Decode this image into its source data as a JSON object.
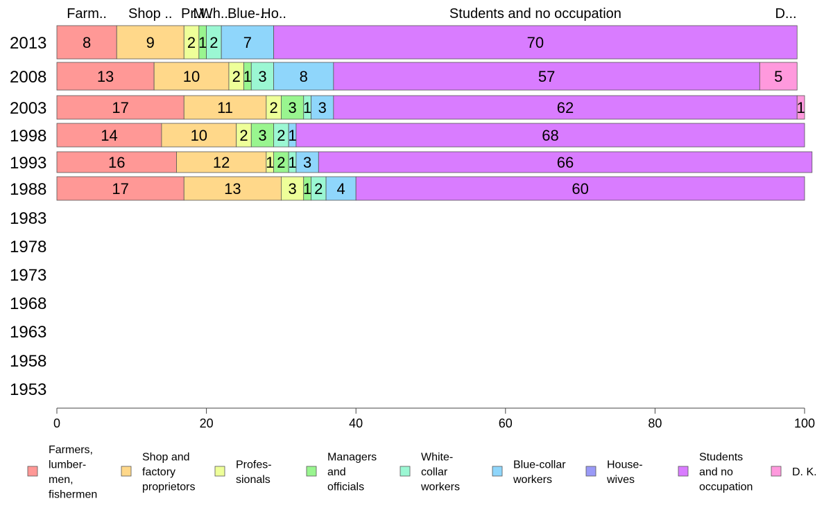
{
  "chart_data": {
    "type": "bar",
    "orientation": "horizontal",
    "stacked": true,
    "title": "",
    "xlabel": "",
    "ylabel": "",
    "xlim": [
      0,
      100
    ],
    "x_ticks": [
      "0",
      "20",
      "40",
      "60",
      "80",
      "100"
    ],
    "categories": [
      "2013",
      "2008",
      "2003",
      "1998",
      "1993",
      "1988",
      "1983",
      "1978",
      "1973",
      "1968",
      "1963",
      "1958",
      "1953"
    ],
    "top_labels": [
      "Farm..",
      "Shop ..",
      "Pr..",
      "M..",
      "Wh..",
      "Blue-..",
      "Ho..",
      "Students and no occupation",
      "D..."
    ],
    "legend_position": "bottom",
    "grid": false,
    "series": [
      {
        "name": "Farmers, lumbermen, fishermen",
        "legend_lines": [
          "Farmers,",
          "lumber-",
          "men,",
          "fishermen"
        ],
        "color": "#ff9896",
        "values": [
          8,
          13,
          17,
          14,
          16,
          17,
          null,
          null,
          null,
          null,
          null,
          null,
          null
        ]
      },
      {
        "name": "Shop and factory proprietors",
        "legend_lines": [
          "Shop and",
          "factory",
          "proprietors"
        ],
        "color": "#ffd88a",
        "values": [
          9,
          10,
          11,
          10,
          12,
          13,
          null,
          null,
          null,
          null,
          null,
          null,
          null
        ]
      },
      {
        "name": "Professionals",
        "legend_lines": [
          "Profes-",
          "sionals"
        ],
        "color": "#eeff99",
        "values": [
          2,
          2,
          2,
          2,
          1,
          3,
          null,
          null,
          null,
          null,
          null,
          null,
          null
        ]
      },
      {
        "name": "Managers and officials",
        "legend_lines": [
          "Managers",
          "and",
          "officials"
        ],
        "color": "#99f58f",
        "values": [
          1,
          1,
          3,
          3,
          2,
          1,
          null,
          null,
          null,
          null,
          null,
          null,
          null
        ]
      },
      {
        "name": "White-collar workers",
        "legend_lines": [
          "White-",
          "collar",
          "workers"
        ],
        "color": "#9bf7d3",
        "values": [
          2,
          3,
          1,
          2,
          1,
          2,
          null,
          null,
          null,
          null,
          null,
          null,
          null
        ]
      },
      {
        "name": "Blue-collar workers",
        "legend_lines": [
          "Blue-collar",
          "workers"
        ],
        "color": "#8fd6fb",
        "values": [
          7,
          8,
          3,
          1,
          3,
          4,
          null,
          null,
          null,
          null,
          null,
          null,
          null
        ]
      },
      {
        "name": "Housewives",
        "legend_lines": [
          "House-",
          "wives"
        ],
        "color": "#9a9af7",
        "values": [
          0,
          0,
          0,
          0,
          0,
          0,
          null,
          null,
          null,
          null,
          null,
          null,
          null
        ]
      },
      {
        "name": "Students and no occupation",
        "legend_lines": [
          "Students",
          "and no",
          "occupation"
        ],
        "color": "#d97cff",
        "values": [
          70,
          57,
          62,
          68,
          66,
          60,
          null,
          null,
          null,
          null,
          null,
          null,
          null
        ]
      },
      {
        "name": "D. K.",
        "legend_lines": [
          "D. K."
        ],
        "color": "#ff99dd",
        "values": [
          0,
          5,
          1,
          0,
          0,
          0,
          null,
          null,
          null,
          null,
          null,
          null,
          null
        ]
      }
    ],
    "segment_labels": [
      [
        "8",
        "9",
        "2",
        "1",
        "2",
        "7",
        "",
        "70",
        ""
      ],
      [
        "13",
        "10",
        "2",
        "1",
        "3",
        "8",
        "",
        "57",
        "5"
      ],
      [
        "17",
        "11",
        "2",
        "3",
        "1",
        "3",
        "",
        "62",
        "1"
      ],
      [
        "14",
        "10",
        "2",
        "3",
        "2",
        "1",
        "",
        "68",
        ""
      ],
      [
        "16",
        "12",
        "1",
        "2",
        "1",
        "3",
        "",
        "66",
        ""
      ],
      [
        "17",
        "13",
        "3",
        "1",
        "2",
        "4",
        "",
        "60",
        ""
      ]
    ]
  }
}
